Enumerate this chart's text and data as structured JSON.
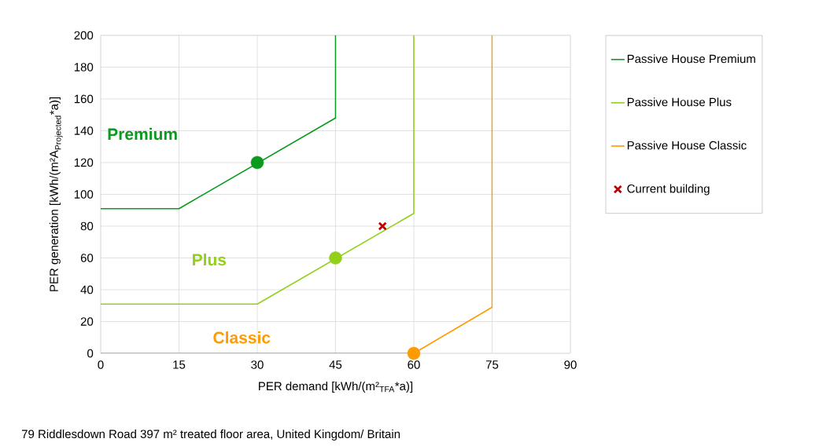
{
  "chart_data": {
    "type": "line",
    "xlabel": "PER demand [kWh/(m²$_{TFA}$*a)]",
    "ylabel": "\\text{PER generation [kWh/(m²A}_{\\text{Projected}}\\text{*a)]}",
    "xlim": [
      0,
      90
    ],
    "xticks": [
      0,
      15,
      30,
      45,
      60,
      75,
      90
    ],
    "ylim": [
      0,
      200
    ],
    "yticks": [
      0,
      20,
      40,
      60,
      80,
      100,
      120,
      140,
      160,
      180,
      200
    ],
    "grid": true,
    "legend": "right",
    "series": [
      {
        "name": "Passive House Premium",
        "color": "#0a9a1e",
        "x": [
          0,
          15,
          45,
          45
        ],
        "values": [
          91,
          91,
          148,
          200
        ]
      },
      {
        "name": "Passive House Plus",
        "color": "#92d01a",
        "x": [
          0,
          30,
          60,
          60
        ],
        "values": [
          31,
          31,
          88,
          200
        ]
      },
      {
        "name": "Passive House Classic",
        "color": "#ff9a00",
        "x": [
          0,
          60,
          75,
          75
        ],
        "values": [
          0,
          0,
          29,
          200
        ]
      },
      {
        "type": "scatter",
        "color": "#0a9a1e",
        "marker": "circle",
        "x": [
          30
        ],
        "values": [
          120
        ]
      },
      {
        "type": "scatter",
        "color": "#92d01a",
        "marker": "circle",
        "x": [
          45
        ],
        "values": [
          60
        ]
      },
      {
        "type": "scatter",
        "color": "#ff9a00",
        "marker": "circle",
        "x": [
          60
        ],
        "values": [
          0
        ]
      },
      {
        "name": "Current building",
        "type": "scatter",
        "color": "#c00000",
        "marker": "cross",
        "x": [
          54
        ],
        "values": [
          80
        ]
      }
    ],
    "annotations": [
      "Premium",
      "Plus",
      "Classic",
      "79 Riddlesdown Road    397 m² treated floor area, United Kingdom/ Britain"
    ]
  }
}
